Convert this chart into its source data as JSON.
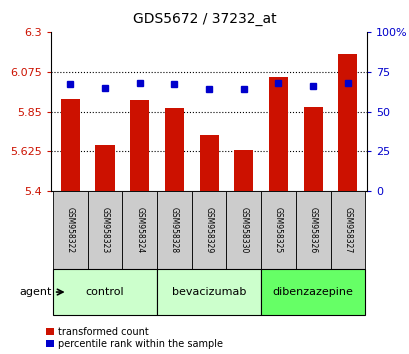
{
  "title": "GDS5672 / 37232_at",
  "samples": [
    "GSM958322",
    "GSM958323",
    "GSM958324",
    "GSM958328",
    "GSM958329",
    "GSM958330",
    "GSM958325",
    "GSM958326",
    "GSM958327"
  ],
  "transformed_counts": [
    5.92,
    5.66,
    5.915,
    5.87,
    5.72,
    5.635,
    6.045,
    5.875,
    6.175
  ],
  "percentile_ranks": [
    67,
    65,
    68,
    67,
    64,
    64,
    68,
    66,
    68
  ],
  "ylim_left": [
    5.4,
    6.3
  ],
  "yticks_left": [
    5.4,
    5.625,
    5.85,
    6.075,
    6.3
  ],
  "ytick_labels_left": [
    "5.4",
    "5.625",
    "5.85",
    "6.075",
    "6.3"
  ],
  "ylim_right": [
    0,
    100
  ],
  "yticks_right": [
    0,
    25,
    50,
    75,
    100
  ],
  "ytick_labels_right": [
    "0",
    "25",
    "50",
    "75",
    "100%"
  ],
  "bar_color": "#cc1100",
  "dot_color": "#0000cc",
  "groups": [
    {
      "label": "control",
      "indices": [
        0,
        1,
        2
      ],
      "color": "#ccffcc"
    },
    {
      "label": "bevacizumab",
      "indices": [
        3,
        4,
        5
      ],
      "color": "#ccffcc"
    },
    {
      "label": "dibenzazepine",
      "indices": [
        6,
        7,
        8
      ],
      "color": "#66ff66"
    }
  ],
  "agent_label": "agent",
  "legend_items": [
    {
      "label": "transformed count",
      "color": "#cc1100"
    },
    {
      "label": "percentile rank within the sample",
      "color": "#0000cc"
    }
  ],
  "grid_color": "#000000",
  "tick_label_color_left": "#cc1100",
  "tick_label_color_right": "#0000cc",
  "sample_box_color": "#cccccc",
  "title_fontsize": 10,
  "bar_width": 0.55
}
